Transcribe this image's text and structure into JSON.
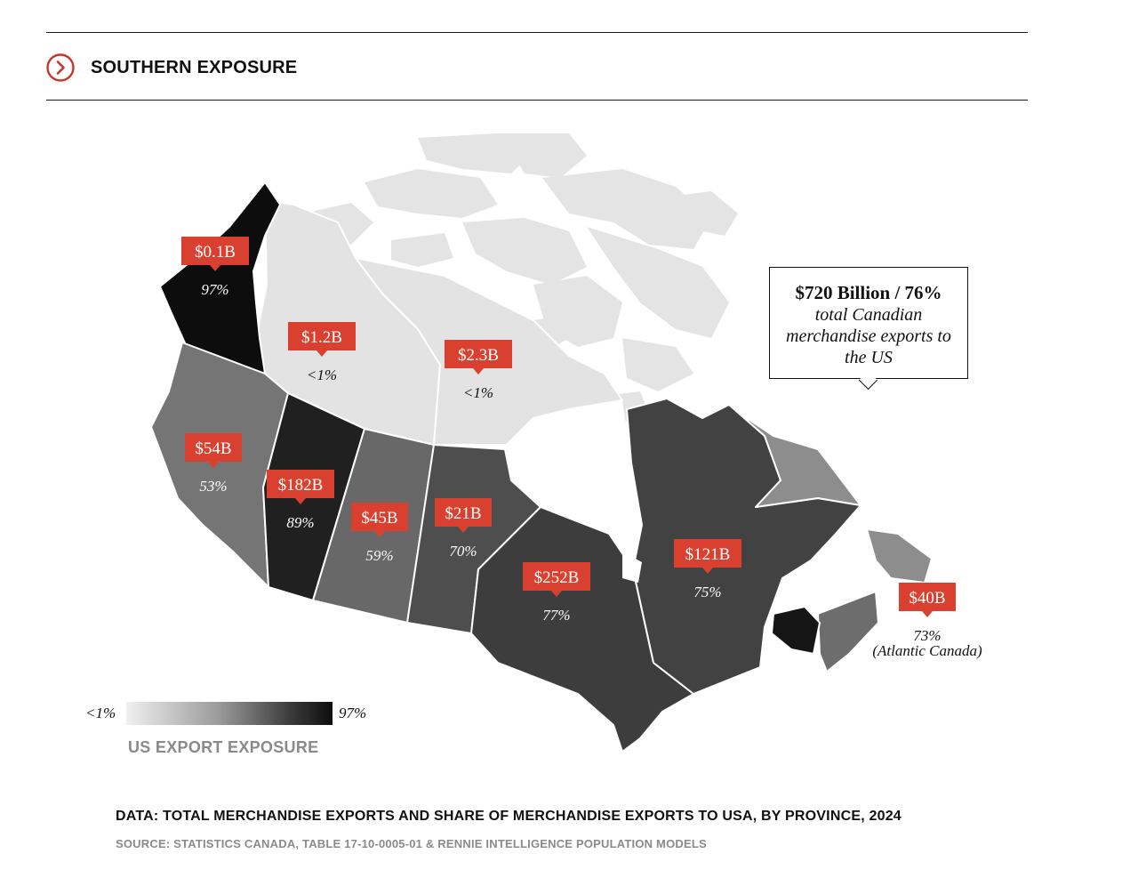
{
  "header": {
    "title": "SOUTHERN EXPOSURE"
  },
  "colors": {
    "accent": "#c8362b",
    "label_bg": "#d9402f",
    "scale_low": "#e4e4e4",
    "scale_high": "#0d0d0d",
    "legend_text": "#8a8a8a"
  },
  "regions": [
    {
      "id": "yukon",
      "name": "Yukon",
      "value": "$0.1B",
      "share": "97%",
      "share_pct": 97
    },
    {
      "id": "nwt",
      "name": "Northwest Territories",
      "value": "$1.2B",
      "share": "<1%",
      "share_pct": 0.5
    },
    {
      "id": "nunavut",
      "name": "Nunavut",
      "value": "$2.3B",
      "share": "<1%",
      "share_pct": 0.5
    },
    {
      "id": "bc",
      "name": "British Columbia",
      "value": "$54B",
      "share": "53%",
      "share_pct": 53
    },
    {
      "id": "alberta",
      "name": "Alberta",
      "value": "$182B",
      "share": "89%",
      "share_pct": 89
    },
    {
      "id": "saskatchewan",
      "name": "Saskatchewan",
      "value": "$45B",
      "share": "59%",
      "share_pct": 59
    },
    {
      "id": "manitoba",
      "name": "Manitoba",
      "value": "$21B",
      "share": "70%",
      "share_pct": 70
    },
    {
      "id": "ontario",
      "name": "Ontario",
      "value": "$252B",
      "share": "77%",
      "share_pct": 77
    },
    {
      "id": "quebec",
      "name": "Quebec",
      "value": "$121B",
      "share": "75%",
      "share_pct": 75
    },
    {
      "id": "atlantic",
      "name": "Atlantic Canada",
      "value": "$40B",
      "share": "73%",
      "share_pct": 73,
      "note": "(Atlantic Canada)"
    }
  ],
  "callout": {
    "title": "$720 Billion / 76%",
    "subtitle": "total Canadian merchandise exports to the US"
  },
  "legend": {
    "min_label": "<1%",
    "max_label": "97%",
    "title": "US EXPORT EXPOSURE"
  },
  "footer": {
    "data_line": "DATA: TOTAL MERCHANDISE EXPORTS AND SHARE OF MERCHANDISE EXPORTS TO USA, BY PROVINCE, 2024",
    "source_line": "SOURCE: STATISTICS CANADA, TABLE 17-10-0005-01 & RENNIE INTELLIGENCE POPULATION MODELS"
  }
}
